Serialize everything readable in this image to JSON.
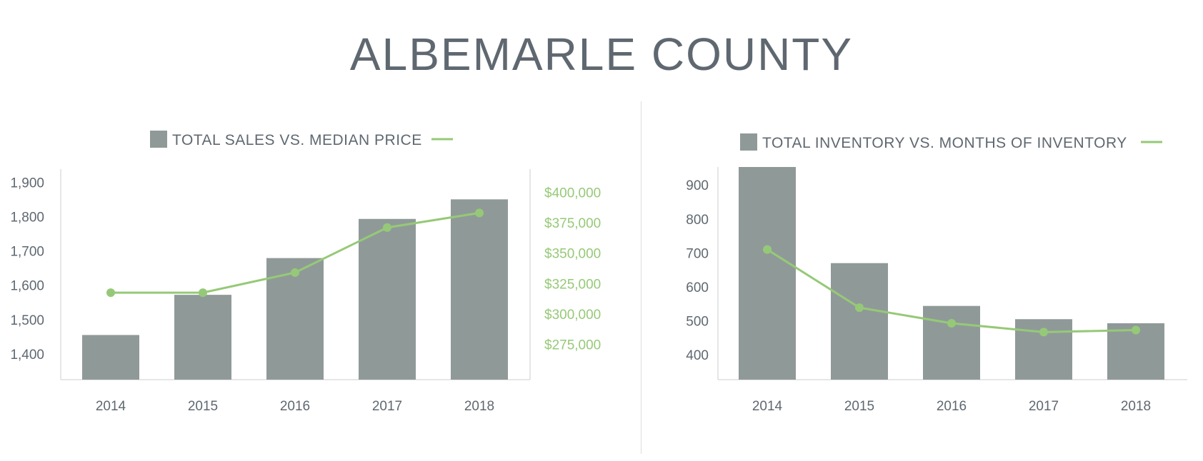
{
  "page": {
    "title": "ALBEMARLE COUNTY"
  },
  "colors": {
    "bar": "#8f9a98",
    "line": "#96c977",
    "text": "#5f6870",
    "axis": "#dddddd",
    "title": "#5f6870"
  },
  "chart_data": [
    {
      "type": "bar+line",
      "title": "TOTAL SALES VS. MEDIAN PRICE",
      "categories": [
        "2014",
        "2015",
        "2016",
        "2017",
        "2018"
      ],
      "series": [
        {
          "name": "TOTAL SALES",
          "type": "bar",
          "axis": "left",
          "values": [
            1455,
            1572,
            1679,
            1793,
            1850
          ]
        },
        {
          "name": "MEDIAN PRICE",
          "type": "line",
          "axis": "right",
          "values": [
            317500,
            317500,
            334000,
            371000,
            383000
          ]
        }
      ],
      "y_left": {
        "ylim": [
          1325,
          1938
        ],
        "ticks": [
          1400,
          1500,
          1600,
          1700,
          1800,
          1900
        ],
        "tick_labels": [
          "1,400",
          "1,500",
          "1,600",
          "1,700",
          "1,800",
          "1,900"
        ]
      },
      "y_right": {
        "ylim": [
          246000,
          419000
        ],
        "ticks": [
          275000,
          300000,
          325000,
          350000,
          375000,
          400000
        ],
        "tick_labels": [
          "$275,000",
          "$300,000",
          "$325,000",
          "$350,000",
          "$375,000",
          "$400,000"
        ]
      },
      "grid": false,
      "legend": "top"
    },
    {
      "type": "bar+line",
      "title": "TOTAL INVENTORY VS. MONTHS OF INVENTORY",
      "categories": [
        "2014",
        "2015",
        "2016",
        "2017",
        "2018"
      ],
      "series": [
        {
          "name": "TOTAL INVENTORY",
          "type": "bar",
          "axis": "left",
          "values": [
            953,
            670,
            544,
            505,
            493
          ]
        },
        {
          "name": "MONTHS OF INVENTORY",
          "type": "line",
          "axis": "left",
          "values": [
            710,
            539,
            493,
            467,
            473
          ]
        }
      ],
      "y_left": {
        "ylim": [
          327,
          953
        ],
        "ticks": [
          400,
          500,
          600,
          700,
          800,
          900
        ],
        "tick_labels": [
          "400",
          "500",
          "600",
          "700",
          "800",
          "900"
        ]
      },
      "grid": false,
      "legend": "top"
    }
  ]
}
